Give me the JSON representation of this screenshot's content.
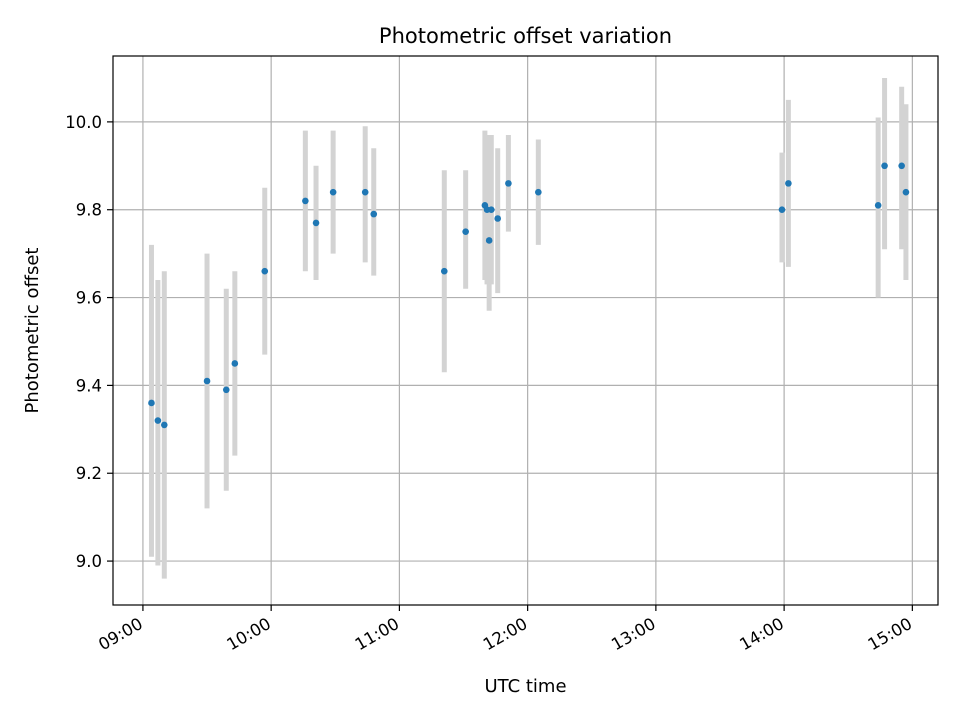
{
  "chart_data": {
    "type": "scatter",
    "title": "Photometric offset variation",
    "xlabel": "UTC time",
    "ylabel": "Photometric offset",
    "x_ticks": [
      "09:00",
      "10:00",
      "11:00",
      "12:00",
      "13:00",
      "14:00",
      "15:00"
    ],
    "y_ticks": [
      "9.0",
      "9.2",
      "9.4",
      "9.6",
      "9.8",
      "10.0"
    ],
    "xlim": [
      "08:46",
      "15:12"
    ],
    "ylim": [
      8.9,
      10.15
    ],
    "grid": true,
    "colors": {
      "point": "#1f77b4",
      "errorbar": "#d3d3d3",
      "grid": "#b0b0b0"
    },
    "points": [
      {
        "x": "09:04",
        "y": 9.36,
        "low": 9.01,
        "high": 9.72
      },
      {
        "x": "09:07",
        "y": 9.32,
        "low": 8.99,
        "high": 9.64
      },
      {
        "x": "09:10",
        "y": 9.31,
        "low": 8.96,
        "high": 9.66
      },
      {
        "x": "09:30",
        "y": 9.41,
        "low": 9.12,
        "high": 9.7
      },
      {
        "x": "09:39",
        "y": 9.39,
        "low": 9.16,
        "high": 9.62
      },
      {
        "x": "09:43",
        "y": 9.45,
        "low": 9.24,
        "high": 9.66
      },
      {
        "x": "09:57",
        "y": 9.66,
        "low": 9.47,
        "high": 9.85
      },
      {
        "x": "10:16",
        "y": 9.82,
        "low": 9.66,
        "high": 9.98
      },
      {
        "x": "10:21",
        "y": 9.77,
        "low": 9.64,
        "high": 9.9
      },
      {
        "x": "10:29",
        "y": 9.84,
        "low": 9.7,
        "high": 9.98
      },
      {
        "x": "10:44",
        "y": 9.84,
        "low": 9.68,
        "high": 9.99
      },
      {
        "x": "10:48",
        "y": 9.79,
        "low": 9.65,
        "high": 9.94
      },
      {
        "x": "11:21",
        "y": 9.66,
        "low": 9.43,
        "high": 9.89
      },
      {
        "x": "11:31",
        "y": 9.75,
        "low": 9.62,
        "high": 9.89
      },
      {
        "x": "11:40",
        "y": 9.81,
        "low": 9.64,
        "high": 9.98
      },
      {
        "x": "11:41",
        "y": 9.8,
        "low": 9.63,
        "high": 9.97
      },
      {
        "x": "11:42",
        "y": 9.73,
        "low": 9.57,
        "high": 9.88
      },
      {
        "x": "11:43",
        "y": 9.8,
        "low": 9.63,
        "high": 9.97
      },
      {
        "x": "11:46",
        "y": 9.78,
        "low": 9.61,
        "high": 9.94
      },
      {
        "x": "11:51",
        "y": 9.86,
        "low": 9.75,
        "high": 9.97
      },
      {
        "x": "12:05",
        "y": 9.84,
        "low": 9.72,
        "high": 9.96
      },
      {
        "x": "13:59",
        "y": 9.8,
        "low": 9.68,
        "high": 9.93
      },
      {
        "x": "14:02",
        "y": 9.86,
        "low": 9.67,
        "high": 10.05
      },
      {
        "x": "14:44",
        "y": 9.81,
        "low": 9.6,
        "high": 10.01
      },
      {
        "x": "14:47",
        "y": 9.9,
        "low": 9.71,
        "high": 10.1
      },
      {
        "x": "14:55",
        "y": 9.9,
        "low": 9.71,
        "high": 10.08
      },
      {
        "x": "14:57",
        "y": 9.84,
        "low": 9.64,
        "high": 10.04
      }
    ]
  }
}
